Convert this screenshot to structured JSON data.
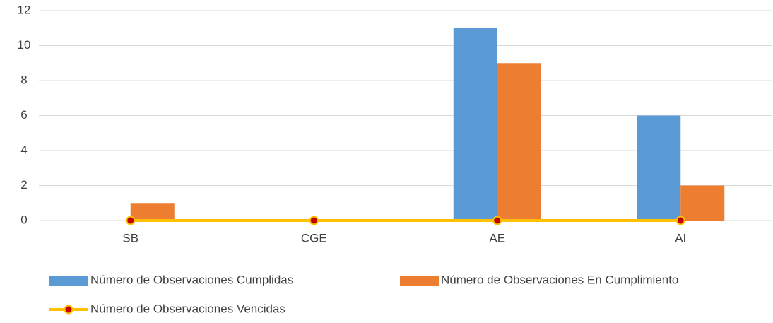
{
  "chart_data": {
    "type": "bar",
    "categories": [
      "SB",
      "CGE",
      "AE",
      "AI"
    ],
    "series": [
      {
        "name": "Número de Observaciones Cumplidas",
        "type": "bar",
        "color": "#5b9bd5",
        "values": [
          0,
          0,
          11,
          6
        ]
      },
      {
        "name": "Número de Observaciones En Cumplimiento",
        "type": "bar",
        "color": "#ed7d31",
        "values": [
          1,
          0,
          9,
          2
        ]
      },
      {
        "name": "Número de Observaciones Vencidas",
        "type": "line",
        "color": "#ffc000",
        "marker_color": "#c00000",
        "values": [
          0,
          0,
          0,
          0
        ]
      }
    ],
    "ylim": [
      0,
      12
    ],
    "yticks": [
      0,
      2,
      4,
      6,
      8,
      10,
      12
    ],
    "grid": true,
    "legend": "bottom"
  }
}
